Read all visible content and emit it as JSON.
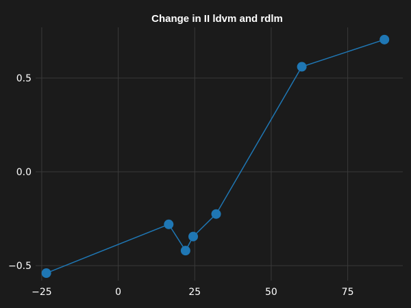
{
  "chart_data": {
    "type": "line",
    "title": "Change in II ldvm and rdlm",
    "xlabel": "",
    "ylabel": "",
    "xlim": [
      -27,
      93
    ],
    "ylim": [
      -0.58,
      0.77
    ],
    "x_ticks": [
      -25,
      0,
      25,
      50,
      75
    ],
    "x_tick_labels": [
      "−25",
      "0",
      "25",
      "50",
      "75"
    ],
    "y_ticks": [
      -0.5,
      0.0,
      0.5
    ],
    "y_tick_labels": [
      "−0.5",
      "0.0",
      "0.5"
    ],
    "grid": true,
    "series": [
      {
        "x": [
          -23.5,
          16.5,
          22.0,
          24.5,
          32.0,
          60.0,
          87.0
        ],
        "y": [
          -0.54,
          -0.28,
          -0.42,
          -0.345,
          -0.225,
          0.56,
          0.705
        ],
        "color": "#1f77b4"
      }
    ]
  }
}
